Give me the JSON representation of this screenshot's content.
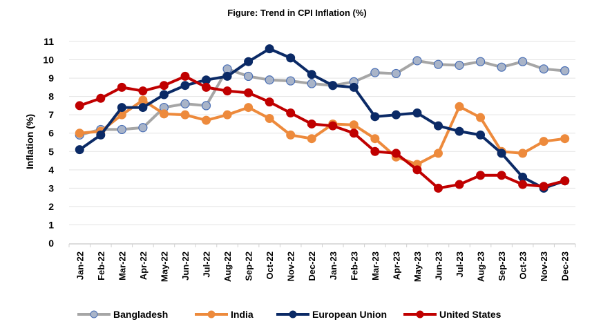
{
  "chart_data": {
    "type": "line",
    "title": "Figure: Trend in CPI Inflation (%)",
    "xlabel": "",
    "ylabel": "Inflation (%)",
    "ylim": [
      0,
      11
    ],
    "yticks": [
      "0",
      "1",
      "2",
      "3",
      "4",
      "5",
      "6",
      "7",
      "8",
      "9",
      "10",
      "11"
    ],
    "grid": true,
    "legend": "bottom",
    "categories": [
      "Jan-22",
      "Feb-22",
      "Mar-22",
      "Apr-22",
      "May-22",
      "Jun-22",
      "Jul-22",
      "Aug-22",
      "Sep-22",
      "Oct-22",
      "Nov-22",
      "Dec-22",
      "Jan-23",
      "Feb-23",
      "Mar-23",
      "Apr-23",
      "May-23",
      "Jun-23",
      "Jul-23",
      "Aug-23",
      "Sep-23",
      "Oct-23",
      "Nov-23",
      "Dec-23"
    ],
    "series": [
      {
        "name": "Bangladesh",
        "color": "#a6a6a6",
        "marker_fill": "#a9b4c8",
        "marker_stroke": "#4a6fb5",
        "values": [
          5.9,
          6.2,
          6.2,
          6.3,
          7.4,
          7.6,
          7.5,
          9.5,
          9.1,
          8.9,
          8.85,
          8.7,
          8.6,
          8.8,
          9.3,
          9.25,
          9.95,
          9.75,
          9.7,
          9.9,
          9.6,
          9.9,
          9.5,
          9.4
        ]
      },
      {
        "name": "India",
        "color": "#ed8a3c",
        "marker_fill": "#ed8a3c",
        "marker_stroke": "#ed8a3c",
        "values": [
          6.0,
          6.1,
          7.0,
          7.8,
          7.05,
          7.0,
          6.7,
          7.0,
          7.4,
          6.8,
          5.9,
          5.7,
          6.5,
          6.45,
          5.7,
          4.7,
          4.3,
          4.9,
          7.45,
          6.85,
          5.0,
          4.9,
          5.55,
          5.7
        ]
      },
      {
        "name": "European Union",
        "color": "#0b2a66",
        "marker_fill": "#0b2a66",
        "marker_stroke": "#0b2a66",
        "values": [
          5.1,
          5.9,
          7.4,
          7.4,
          8.1,
          8.6,
          8.9,
          9.1,
          9.9,
          10.6,
          10.1,
          9.2,
          8.6,
          8.5,
          6.9,
          7.0,
          7.1,
          6.4,
          6.1,
          5.9,
          4.9,
          3.6,
          3.0,
          3.4
        ]
      },
      {
        "name": "United States",
        "color": "#c00000",
        "marker_fill": "#c00000",
        "marker_stroke": "#c00000",
        "values": [
          7.5,
          7.9,
          8.5,
          8.3,
          8.6,
          9.1,
          8.5,
          8.3,
          8.2,
          7.7,
          7.1,
          6.5,
          6.4,
          6.0,
          5.0,
          4.9,
          4.0,
          3.0,
          3.2,
          3.7,
          3.7,
          3.2,
          3.1,
          3.4
        ]
      }
    ]
  }
}
